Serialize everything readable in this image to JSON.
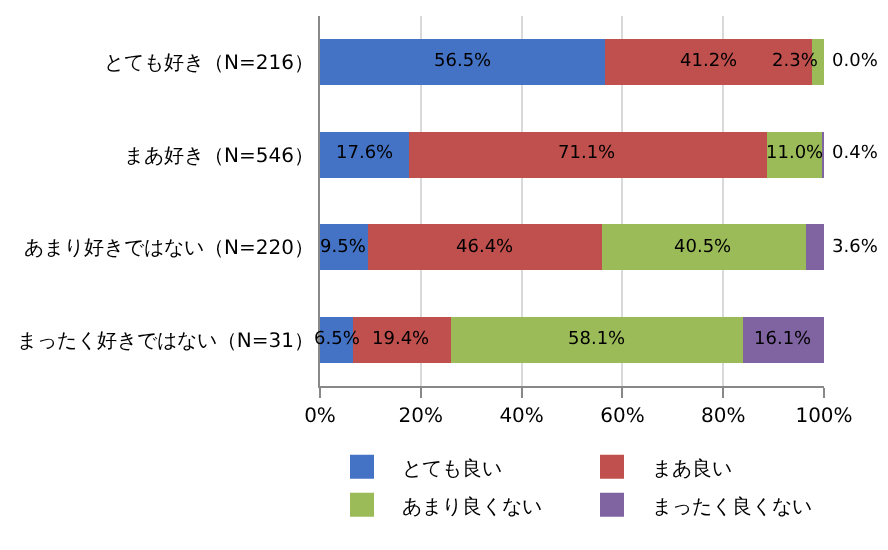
{
  "chart_data": {
    "type": "bar",
    "orientation": "horizontal",
    "stacked": true,
    "categories": [
      "とても好き（N=216）",
      "まあ好き（N=546）",
      "あまり好きではない（N=220）",
      "まったく好きではない（N=31）"
    ],
    "series": [
      {
        "name": "とても良い",
        "color": "#4472c4",
        "values": [
          56.5,
          17.6,
          9.5,
          6.5
        ],
        "value_labels": [
          "56.5%",
          "17.6%",
          "9.5%",
          "6.5%"
        ]
      },
      {
        "name": "まあ良い",
        "color": "#c0504d",
        "values": [
          41.2,
          71.1,
          46.4,
          19.4
        ],
        "value_labels": [
          "41.2%",
          "71.1%",
          "46.4%",
          "19.4%"
        ]
      },
      {
        "name": "あまり良くない",
        "color": "#9bbb59",
        "values": [
          2.3,
          11.0,
          40.5,
          58.1
        ],
        "value_labels": [
          "2.3%",
          "11.0%",
          "40.5%",
          "58.1%"
        ]
      },
      {
        "name": "まったく良くない",
        "color": "#8064a2",
        "values": [
          0.0,
          0.4,
          3.6,
          16.1
        ],
        "value_labels": [
          "0.0%",
          "0.4%",
          "3.6%",
          "16.1%"
        ]
      }
    ],
    "xlim": [
      0,
      100
    ],
    "xticks": [
      {
        "value": 0,
        "label": "0%"
      },
      {
        "value": 20,
        "label": "20%"
      },
      {
        "value": 40,
        "label": "40%"
      },
      {
        "value": 60,
        "label": "60%"
      },
      {
        "value": 80,
        "label": "80%"
      },
      {
        "value": 100,
        "label": "100%"
      }
    ],
    "grid": "x",
    "legend": "bottom"
  }
}
